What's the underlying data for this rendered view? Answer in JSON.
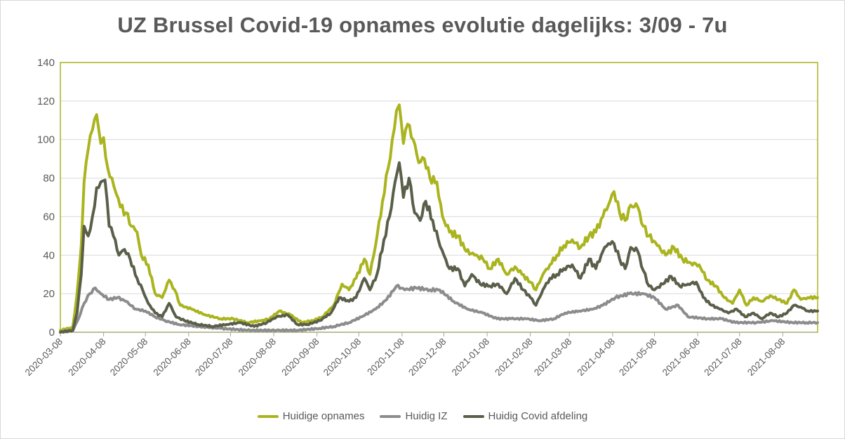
{
  "chart_data": {
    "type": "line",
    "title": "UZ Brussel Covid-19 opnames evolutie dagelijks: 3/09 - 7u",
    "xlabel": "",
    "ylabel": "",
    "ylim": [
      0,
      140
    ],
    "yticks": [
      "0",
      "20",
      "40",
      "60",
      "80",
      "100",
      "120",
      "140"
    ],
    "x_range": [
      "2020-03-08",
      "2021-09-02"
    ],
    "xticks": [
      "2020-03-08",
      "2020-04-08",
      "2020-05-08",
      "2020-06-08",
      "2020-07-08",
      "2020-08-08",
      "2020-09-08",
      "2020-10-08",
      "2020-11-08",
      "2020-12-08",
      "2021-01-08",
      "2021-02-08",
      "2021-03-08",
      "2021-04-08",
      "2021-05-08",
      "2021-06-08",
      "2021-07-08",
      "2021-08-08"
    ],
    "grid": true,
    "legend_position": "bottom",
    "series": [
      {
        "name": "Huidige opnames",
        "color": "#aab41e",
        "points": [
          [
            "2020-03-08",
            1
          ],
          [
            "2020-03-14",
            2
          ],
          [
            "2020-03-17",
            3
          ],
          [
            "2020-03-20",
            20
          ],
          [
            "2020-03-23",
            45
          ],
          [
            "2020-03-25",
            78
          ],
          [
            "2020-03-28",
            95
          ],
          [
            "2020-03-31",
            105
          ],
          [
            "2020-04-03",
            113
          ],
          [
            "2020-04-06",
            98
          ],
          [
            "2020-04-08",
            101
          ],
          [
            "2020-04-11",
            85
          ],
          [
            "2020-04-14",
            80
          ],
          [
            "2020-04-17",
            72
          ],
          [
            "2020-04-20",
            65
          ],
          [
            "2020-04-24",
            62
          ],
          [
            "2020-04-28",
            55
          ],
          [
            "2020-05-02",
            52
          ],
          [
            "2020-05-05",
            40
          ],
          [
            "2020-05-10",
            35
          ],
          [
            "2020-05-15",
            20
          ],
          [
            "2020-05-20",
            18
          ],
          [
            "2020-05-25",
            27
          ],
          [
            "2020-05-29",
            22
          ],
          [
            "2020-06-02",
            14
          ],
          [
            "2020-06-10",
            12
          ],
          [
            "2020-06-20",
            9
          ],
          [
            "2020-07-01",
            7
          ],
          [
            "2020-07-10",
            7
          ],
          [
            "2020-07-20",
            5
          ],
          [
            "2020-07-30",
            6
          ],
          [
            "2020-08-05",
            7
          ],
          [
            "2020-08-12",
            11
          ],
          [
            "2020-08-20",
            9
          ],
          [
            "2020-08-28",
            5
          ],
          [
            "2020-09-05",
            6
          ],
          [
            "2020-09-12",
            8
          ],
          [
            "2020-09-20",
            14
          ],
          [
            "2020-09-26",
            25
          ],
          [
            "2020-10-01",
            22
          ],
          [
            "2020-10-06",
            28
          ],
          [
            "2020-10-12",
            38
          ],
          [
            "2020-10-16",
            30
          ],
          [
            "2020-10-20",
            45
          ],
          [
            "2020-10-25",
            68
          ],
          [
            "2020-10-29",
            85
          ],
          [
            "2020-11-01",
            100
          ],
          [
            "2020-11-04",
            115
          ],
          [
            "2020-11-06",
            118
          ],
          [
            "2020-11-09",
            98
          ],
          [
            "2020-11-12",
            108
          ],
          [
            "2020-11-16",
            100
          ],
          [
            "2020-11-20",
            88
          ],
          [
            "2020-11-24",
            90
          ],
          [
            "2020-11-28",
            80
          ],
          [
            "2020-12-03",
            78
          ],
          [
            "2020-12-07",
            60
          ],
          [
            "2020-12-12",
            52
          ],
          [
            "2020-12-18",
            50
          ],
          [
            "2020-12-24",
            42
          ],
          [
            "2020-12-30",
            40
          ],
          [
            "2021-01-05",
            38
          ],
          [
            "2021-01-10",
            33
          ],
          [
            "2021-01-16",
            38
          ],
          [
            "2021-01-22",
            30
          ],
          [
            "2021-01-28",
            34
          ],
          [
            "2021-02-02",
            30
          ],
          [
            "2021-02-08",
            26
          ],
          [
            "2021-02-12",
            22
          ],
          [
            "2021-02-17",
            30
          ],
          [
            "2021-02-22",
            35
          ],
          [
            "2021-02-27",
            40
          ],
          [
            "2021-03-04",
            45
          ],
          [
            "2021-03-10",
            48
          ],
          [
            "2021-03-16",
            44
          ],
          [
            "2021-03-22",
            50
          ],
          [
            "2021-03-27",
            52
          ],
          [
            "2021-04-01",
            60
          ],
          [
            "2021-04-05",
            66
          ],
          [
            "2021-04-09",
            73
          ],
          [
            "2021-04-13",
            62
          ],
          [
            "2021-04-17",
            58
          ],
          [
            "2021-04-21",
            66
          ],
          [
            "2021-04-26",
            65
          ],
          [
            "2021-04-30",
            55
          ],
          [
            "2021-05-04",
            50
          ],
          [
            "2021-05-10",
            45
          ],
          [
            "2021-05-16",
            40
          ],
          [
            "2021-05-22",
            44
          ],
          [
            "2021-05-28",
            38
          ],
          [
            "2021-06-03",
            36
          ],
          [
            "2021-06-09",
            35
          ],
          [
            "2021-06-15",
            27
          ],
          [
            "2021-06-21",
            24
          ],
          [
            "2021-06-27",
            18
          ],
          [
            "2021-07-03",
            15
          ],
          [
            "2021-07-08",
            22
          ],
          [
            "2021-07-13",
            14
          ],
          [
            "2021-07-18",
            18
          ],
          [
            "2021-07-24",
            16
          ],
          [
            "2021-07-30",
            19
          ],
          [
            "2021-08-05",
            17
          ],
          [
            "2021-08-11",
            15
          ],
          [
            "2021-08-16",
            22
          ],
          [
            "2021-08-21",
            17
          ],
          [
            "2021-08-26",
            18
          ],
          [
            "2021-09-02",
            18
          ]
        ]
      },
      {
        "name": "Huidig IZ",
        "color": "#8c8c8c",
        "points": [
          [
            "2020-03-08",
            0
          ],
          [
            "2020-03-17",
            1
          ],
          [
            "2020-03-21",
            7
          ],
          [
            "2020-03-25",
            15
          ],
          [
            "2020-03-29",
            20
          ],
          [
            "2020-04-02",
            23
          ],
          [
            "2020-04-06",
            20
          ],
          [
            "2020-04-12",
            17
          ],
          [
            "2020-04-18",
            18
          ],
          [
            "2020-04-24",
            16
          ],
          [
            "2020-05-01",
            12
          ],
          [
            "2020-05-08",
            11
          ],
          [
            "2020-05-15",
            8
          ],
          [
            "2020-05-22",
            6
          ],
          [
            "2020-06-01",
            4
          ],
          [
            "2020-06-15",
            3
          ],
          [
            "2020-07-01",
            2
          ],
          [
            "2020-07-20",
            1
          ],
          [
            "2020-08-10",
            1
          ],
          [
            "2020-08-25",
            1
          ],
          [
            "2020-09-10",
            2
          ],
          [
            "2020-09-20",
            3
          ],
          [
            "2020-10-01",
            5
          ],
          [
            "2020-10-10",
            8
          ],
          [
            "2020-10-20",
            12
          ],
          [
            "2020-10-28",
            17
          ],
          [
            "2020-11-04",
            24
          ],
          [
            "2020-11-10",
            22
          ],
          [
            "2020-11-18",
            23
          ],
          [
            "2020-11-28",
            22
          ],
          [
            "2020-12-05",
            22
          ],
          [
            "2020-12-15",
            16
          ],
          [
            "2020-12-25",
            12
          ],
          [
            "2021-01-05",
            10
          ],
          [
            "2021-01-15",
            7
          ],
          [
            "2021-01-25",
            7
          ],
          [
            "2021-02-05",
            7
          ],
          [
            "2021-02-15",
            6
          ],
          [
            "2021-02-25",
            7
          ],
          [
            "2021-03-05",
            10
          ],
          [
            "2021-03-15",
            11
          ],
          [
            "2021-03-25",
            12
          ],
          [
            "2021-04-01",
            14
          ],
          [
            "2021-04-10",
            18
          ],
          [
            "2021-04-20",
            20
          ],
          [
            "2021-04-30",
            20
          ],
          [
            "2021-05-08",
            18
          ],
          [
            "2021-05-16",
            12
          ],
          [
            "2021-05-25",
            14
          ],
          [
            "2021-06-01",
            8
          ],
          [
            "2021-06-15",
            7
          ],
          [
            "2021-06-25",
            7
          ],
          [
            "2021-07-05",
            5
          ],
          [
            "2021-07-20",
            5
          ],
          [
            "2021-08-01",
            6
          ],
          [
            "2021-08-15",
            5
          ],
          [
            "2021-08-25",
            5
          ],
          [
            "2021-09-02",
            5
          ]
        ]
      },
      {
        "name": "Huidig Covid afdeling",
        "color": "#595f49",
        "points": [
          [
            "2020-03-08",
            0
          ],
          [
            "2020-03-17",
            1
          ],
          [
            "2020-03-20",
            10
          ],
          [
            "2020-03-23",
            30
          ],
          [
            "2020-03-25",
            55
          ],
          [
            "2020-03-28",
            50
          ],
          [
            "2020-03-31",
            60
          ],
          [
            "2020-04-03",
            75
          ],
          [
            "2020-04-06",
            78
          ],
          [
            "2020-04-09",
            79
          ],
          [
            "2020-04-12",
            55
          ],
          [
            "2020-04-15",
            50
          ],
          [
            "2020-04-19",
            40
          ],
          [
            "2020-04-23",
            43
          ],
          [
            "2020-04-27",
            38
          ],
          [
            "2020-05-02",
            28
          ],
          [
            "2020-05-06",
            22
          ],
          [
            "2020-05-10",
            15
          ],
          [
            "2020-05-15",
            10
          ],
          [
            "2020-05-20",
            8
          ],
          [
            "2020-05-25",
            15
          ],
          [
            "2020-05-30",
            8
          ],
          [
            "2020-06-05",
            6
          ],
          [
            "2020-06-15",
            4
          ],
          [
            "2020-06-25",
            3
          ],
          [
            "2020-07-05",
            4
          ],
          [
            "2020-07-15",
            5
          ],
          [
            "2020-07-25",
            3
          ],
          [
            "2020-08-03",
            5
          ],
          [
            "2020-08-10",
            8
          ],
          [
            "2020-08-18",
            9
          ],
          [
            "2020-08-25",
            4
          ],
          [
            "2020-09-01",
            4
          ],
          [
            "2020-09-10",
            6
          ],
          [
            "2020-09-18",
            10
          ],
          [
            "2020-09-24",
            18
          ],
          [
            "2020-10-01",
            16
          ],
          [
            "2020-10-06",
            18
          ],
          [
            "2020-10-12",
            28
          ],
          [
            "2020-10-16",
            22
          ],
          [
            "2020-10-21",
            30
          ],
          [
            "2020-10-26",
            48
          ],
          [
            "2020-10-30",
            60
          ],
          [
            "2020-11-03",
            78
          ],
          [
            "2020-11-06",
            88
          ],
          [
            "2020-11-09",
            70
          ],
          [
            "2020-11-13",
            80
          ],
          [
            "2020-11-17",
            62
          ],
          [
            "2020-11-21",
            58
          ],
          [
            "2020-11-25",
            68
          ],
          [
            "2020-11-30",
            58
          ],
          [
            "2020-12-04",
            48
          ],
          [
            "2020-12-08",
            40
          ],
          [
            "2020-12-12",
            33
          ],
          [
            "2020-12-18",
            33
          ],
          [
            "2020-12-23",
            24
          ],
          [
            "2020-12-28",
            30
          ],
          [
            "2021-01-03",
            25
          ],
          [
            "2021-01-10",
            24
          ],
          [
            "2021-01-16",
            25
          ],
          [
            "2021-01-22",
            20
          ],
          [
            "2021-01-28",
            28
          ],
          [
            "2021-02-03",
            22
          ],
          [
            "2021-02-08",
            18
          ],
          [
            "2021-02-12",
            14
          ],
          [
            "2021-02-17",
            22
          ],
          [
            "2021-02-22",
            28
          ],
          [
            "2021-02-27",
            30
          ],
          [
            "2021-03-04",
            33
          ],
          [
            "2021-03-10",
            35
          ],
          [
            "2021-03-16",
            28
          ],
          [
            "2021-03-22",
            38
          ],
          [
            "2021-03-27",
            33
          ],
          [
            "2021-04-01",
            42
          ],
          [
            "2021-04-05",
            46
          ],
          [
            "2021-04-09",
            46
          ],
          [
            "2021-04-13",
            38
          ],
          [
            "2021-04-17",
            33
          ],
          [
            "2021-04-21",
            44
          ],
          [
            "2021-04-26",
            42
          ],
          [
            "2021-04-30",
            32
          ],
          [
            "2021-05-04",
            24
          ],
          [
            "2021-05-08",
            22
          ],
          [
            "2021-05-14",
            25
          ],
          [
            "2021-05-20",
            29
          ],
          [
            "2021-05-26",
            24
          ],
          [
            "2021-06-01",
            25
          ],
          [
            "2021-06-07",
            26
          ],
          [
            "2021-06-12",
            18
          ],
          [
            "2021-06-18",
            14
          ],
          [
            "2021-06-24",
            12
          ],
          [
            "2021-06-30",
            10
          ],
          [
            "2021-07-06",
            12
          ],
          [
            "2021-07-12",
            8
          ],
          [
            "2021-07-18",
            10
          ],
          [
            "2021-07-24",
            7
          ],
          [
            "2021-07-30",
            10
          ],
          [
            "2021-08-05",
            8
          ],
          [
            "2021-08-11",
            10
          ],
          [
            "2021-08-16",
            14
          ],
          [
            "2021-08-21",
            13
          ],
          [
            "2021-08-26",
            11
          ],
          [
            "2021-09-02",
            11
          ]
        ]
      }
    ]
  }
}
